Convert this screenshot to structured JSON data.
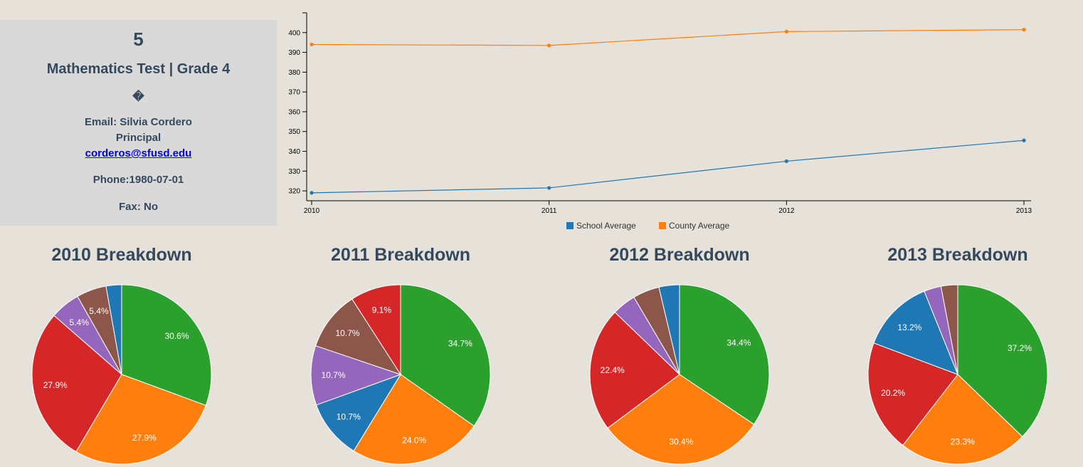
{
  "panel": {
    "school_number": "5",
    "test_title": "Mathematics Test | Grade 4",
    "glyph": "�",
    "contact_line": "Email:  Silvia Cordero",
    "contact_role": "Principal",
    "contact_email": "corderos@sfusd.edu",
    "phone": "Phone:1980-07-01",
    "fax": "Fax: No"
  },
  "colors": {
    "blue": "#1f77b4",
    "orange": "#ff7f0e",
    "green": "#2ca02c",
    "red": "#d62728",
    "purple": "#9467bd",
    "brown": "#8c564b"
  },
  "chart_data": [
    {
      "type": "line",
      "x": [
        "2010",
        "2011",
        "2012",
        "2013"
      ],
      "series": [
        {
          "name": "School Average",
          "color": "#1f77b4",
          "values": [
            319,
            321.5,
            335,
            345.5
          ]
        },
        {
          "name": "County Average",
          "color": "#ff7f0e",
          "values": [
            394,
            393.5,
            400.5,
            401.5
          ]
        }
      ],
      "yticks": [
        320,
        330,
        340,
        350,
        360,
        370,
        380,
        390,
        400
      ],
      "ylim": [
        315,
        410
      ],
      "legend": "bottom-center"
    },
    {
      "type": "pie",
      "title": "2010 Breakdown",
      "slices": [
        {
          "value": 30.6,
          "color": "#2ca02c",
          "label": "30.6%"
        },
        {
          "value": 27.9,
          "color": "#ff7f0e",
          "label": "27.9%"
        },
        {
          "value": 27.9,
          "color": "#d62728",
          "label": "27.9%"
        },
        {
          "value": 5.4,
          "color": "#9467bd",
          "label": "5.4%"
        },
        {
          "value": 5.4,
          "color": "#8c564b",
          "label": "5.4%"
        },
        {
          "value": 2.8,
          "color": "#1f77b4",
          "label": ""
        }
      ]
    },
    {
      "type": "pie",
      "title": "2011 Breakdown",
      "slices": [
        {
          "value": 34.7,
          "color": "#2ca02c",
          "label": "34.7%"
        },
        {
          "value": 24.0,
          "color": "#ff7f0e",
          "label": "24.0%"
        },
        {
          "value": 10.7,
          "color": "#1f77b4",
          "label": "10.7%"
        },
        {
          "value": 10.7,
          "color": "#9467bd",
          "label": "10.7%"
        },
        {
          "value": 10.7,
          "color": "#8c564b",
          "label": "10.7%"
        },
        {
          "value": 9.1,
          "color": "#d62728",
          "label": "9.1%"
        }
      ]
    },
    {
      "type": "pie",
      "title": "2012 Breakdown",
      "slices": [
        {
          "value": 34.4,
          "color": "#2ca02c",
          "label": "34.4%"
        },
        {
          "value": 30.4,
          "color": "#ff7f0e",
          "label": "30.4%"
        },
        {
          "value": 22.4,
          "color": "#d62728",
          "label": "22.4%"
        },
        {
          "value": 4.3,
          "color": "#9467bd",
          "label": ""
        },
        {
          "value": 4.8,
          "color": "#8c564b",
          "label": ""
        },
        {
          "value": 3.7,
          "color": "#1f77b4",
          "label": ""
        }
      ]
    },
    {
      "type": "pie",
      "title": "2013 Breakdown",
      "slices": [
        {
          "value": 37.2,
          "color": "#2ca02c",
          "label": "37.2%"
        },
        {
          "value": 23.3,
          "color": "#ff7f0e",
          "label": "23.3%"
        },
        {
          "value": 20.2,
          "color": "#d62728",
          "label": "20.2%"
        },
        {
          "value": 13.2,
          "color": "#1f77b4",
          "label": "13.2%"
        },
        {
          "value": 3.1,
          "color": "#9467bd",
          "label": ""
        },
        {
          "value": 3.0,
          "color": "#8c564b",
          "label": ""
        }
      ]
    }
  ]
}
